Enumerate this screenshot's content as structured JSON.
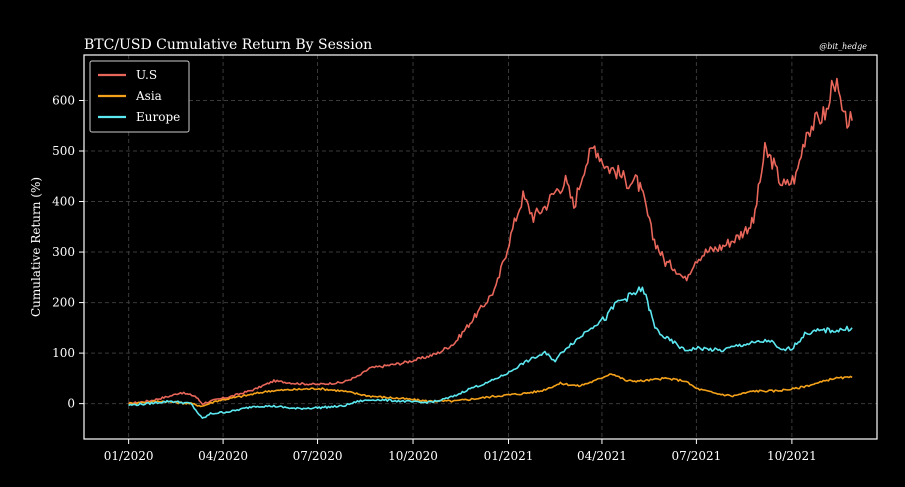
{
  "chart_data": {
    "type": "line",
    "title": "BTC/USD Cumulative Return By Session",
    "credit": "@bit_hedge",
    "xlabel": "",
    "ylabel": "Cumulative Return (%)",
    "xlim": [
      "2019-11-19",
      "2021-12-22"
    ],
    "ylim": [
      -70,
      690
    ],
    "x_ticks": [
      "01/2020",
      "04/2020",
      "07/2020",
      "10/2020",
      "01/2021",
      "04/2021",
      "07/2021",
      "10/2021"
    ],
    "x_tick_dates": [
      "2020-01-01",
      "2020-04-01",
      "2020-07-01",
      "2020-10-01",
      "2021-01-01",
      "2021-04-01",
      "2021-07-01",
      "2021-10-01"
    ],
    "y_ticks": [
      0,
      100,
      200,
      300,
      400,
      500,
      600
    ],
    "grid": true,
    "legend_position": "top-left",
    "series": [
      {
        "name": "U.S",
        "color": "#e8665a",
        "points": [
          [
            "2020-01-01",
            0
          ],
          [
            "2020-01-20",
            5
          ],
          [
            "2020-02-10",
            15
          ],
          [
            "2020-02-20",
            22
          ],
          [
            "2020-03-05",
            15
          ],
          [
            "2020-03-12",
            0
          ],
          [
            "2020-03-20",
            5
          ],
          [
            "2020-04-10",
            15
          ],
          [
            "2020-05-01",
            28
          ],
          [
            "2020-05-20",
            45
          ],
          [
            "2020-06-10",
            40
          ],
          [
            "2020-07-01",
            38
          ],
          [
            "2020-07-25",
            42
          ],
          [
            "2020-08-10",
            55
          ],
          [
            "2020-08-20",
            70
          ],
          [
            "2020-09-05",
            75
          ],
          [
            "2020-09-20",
            80
          ],
          [
            "2020-10-10",
            90
          ],
          [
            "2020-10-25",
            100
          ],
          [
            "2020-11-10",
            120
          ],
          [
            "2020-11-25",
            160
          ],
          [
            "2020-12-10",
            200
          ],
          [
            "2020-12-20",
            230
          ],
          [
            "2020-12-31",
            310
          ],
          [
            "2021-01-10",
            380
          ],
          [
            "2021-01-15",
            410
          ],
          [
            "2021-01-25",
            370
          ],
          [
            "2021-02-05",
            390
          ],
          [
            "2021-02-15",
            420
          ],
          [
            "2021-02-25",
            440
          ],
          [
            "2021-03-05",
            390
          ],
          [
            "2021-03-15",
            470
          ],
          [
            "2021-03-25",
            510
          ],
          [
            "2021-04-05",
            470
          ],
          [
            "2021-04-15",
            460
          ],
          [
            "2021-04-25",
            440
          ],
          [
            "2021-05-05",
            440
          ],
          [
            "2021-05-12",
            400
          ],
          [
            "2021-05-20",
            330
          ],
          [
            "2021-06-01",
            280
          ],
          [
            "2021-06-10",
            270
          ],
          [
            "2021-06-20",
            245
          ],
          [
            "2021-06-30",
            285
          ],
          [
            "2021-07-10",
            300
          ],
          [
            "2021-07-25",
            310
          ],
          [
            "2021-08-10",
            330
          ],
          [
            "2021-08-25",
            360
          ],
          [
            "2021-09-05",
            500
          ],
          [
            "2021-09-12",
            480
          ],
          [
            "2021-09-20",
            440
          ],
          [
            "2021-09-25",
            430
          ],
          [
            "2021-10-05",
            450
          ],
          [
            "2021-10-15",
            540
          ],
          [
            "2021-10-25",
            560
          ],
          [
            "2021-11-05",
            580
          ],
          [
            "2021-11-10",
            650
          ],
          [
            "2021-11-15",
            610
          ],
          [
            "2021-11-20",
            560
          ],
          [
            "2021-11-28",
            560
          ]
        ]
      },
      {
        "name": "Asia",
        "color": "#f5a21b",
        "points": [
          [
            "2020-01-01",
            0
          ],
          [
            "2020-02-01",
            5
          ],
          [
            "2020-03-01",
            0
          ],
          [
            "2020-03-12",
            -5
          ],
          [
            "2020-03-25",
            5
          ],
          [
            "2020-04-20",
            15
          ],
          [
            "2020-05-15",
            25
          ],
          [
            "2020-06-10",
            28
          ],
          [
            "2020-07-01",
            30
          ],
          [
            "2020-07-25",
            25
          ],
          [
            "2020-08-20",
            15
          ],
          [
            "2020-09-20",
            10
          ],
          [
            "2020-10-15",
            5
          ],
          [
            "2020-11-10",
            5
          ],
          [
            "2020-12-01",
            10
          ],
          [
            "2020-12-20",
            15
          ],
          [
            "2021-01-15",
            20
          ],
          [
            "2021-02-01",
            25
          ],
          [
            "2021-02-20",
            40
          ],
          [
            "2021-03-10",
            35
          ],
          [
            "2021-03-25",
            45
          ],
          [
            "2021-04-10",
            60
          ],
          [
            "2021-04-25",
            45
          ],
          [
            "2021-05-10",
            45
          ],
          [
            "2021-06-01",
            50
          ],
          [
            "2021-06-20",
            45
          ],
          [
            "2021-07-01",
            30
          ],
          [
            "2021-07-20",
            20
          ],
          [
            "2021-08-05",
            15
          ],
          [
            "2021-08-25",
            25
          ],
          [
            "2021-09-15",
            25
          ],
          [
            "2021-10-05",
            30
          ],
          [
            "2021-10-25",
            40
          ],
          [
            "2021-11-10",
            50
          ],
          [
            "2021-11-28",
            52
          ]
        ]
      },
      {
        "name": "Europe",
        "color": "#5ce8f0",
        "points": [
          [
            "2020-01-01",
            -3
          ],
          [
            "2020-01-20",
            0
          ],
          [
            "2020-02-10",
            5
          ],
          [
            "2020-03-01",
            0
          ],
          [
            "2020-03-12",
            -30
          ],
          [
            "2020-03-20",
            -20
          ],
          [
            "2020-04-10",
            -15
          ],
          [
            "2020-05-01",
            -5
          ],
          [
            "2020-05-20",
            -5
          ],
          [
            "2020-06-10",
            -10
          ],
          [
            "2020-07-01",
            -8
          ],
          [
            "2020-07-25",
            -5
          ],
          [
            "2020-08-10",
            5
          ],
          [
            "2020-08-25",
            8
          ],
          [
            "2020-09-20",
            5
          ],
          [
            "2020-10-10",
            2
          ],
          [
            "2020-10-25",
            5
          ],
          [
            "2020-11-10",
            15
          ],
          [
            "2020-11-25",
            30
          ],
          [
            "2020-12-10",
            40
          ],
          [
            "2020-12-31",
            60
          ],
          [
            "2021-01-15",
            80
          ],
          [
            "2021-01-25",
            90
          ],
          [
            "2021-02-05",
            100
          ],
          [
            "2021-02-15",
            85
          ],
          [
            "2021-02-25",
            110
          ],
          [
            "2021-03-10",
            130
          ],
          [
            "2021-03-20",
            150
          ],
          [
            "2021-04-05",
            170
          ],
          [
            "2021-04-15",
            200
          ],
          [
            "2021-04-25",
            210
          ],
          [
            "2021-05-05",
            220
          ],
          [
            "2021-05-10",
            230
          ],
          [
            "2021-05-15",
            200
          ],
          [
            "2021-05-22",
            150
          ],
          [
            "2021-06-01",
            130
          ],
          [
            "2021-06-10",
            120
          ],
          [
            "2021-06-20",
            105
          ],
          [
            "2021-07-01",
            110
          ],
          [
            "2021-07-25",
            105
          ],
          [
            "2021-08-10",
            115
          ],
          [
            "2021-08-25",
            120
          ],
          [
            "2021-09-10",
            125
          ],
          [
            "2021-09-20",
            105
          ],
          [
            "2021-10-01",
            110
          ],
          [
            "2021-10-15",
            140
          ],
          [
            "2021-11-01",
            145
          ],
          [
            "2021-11-15",
            145
          ],
          [
            "2021-11-28",
            150
          ]
        ]
      }
    ]
  },
  "colors": {
    "background": "#000000",
    "frame": "#ffffff",
    "grid": "#3a3a3a",
    "text": "#ffffff"
  }
}
